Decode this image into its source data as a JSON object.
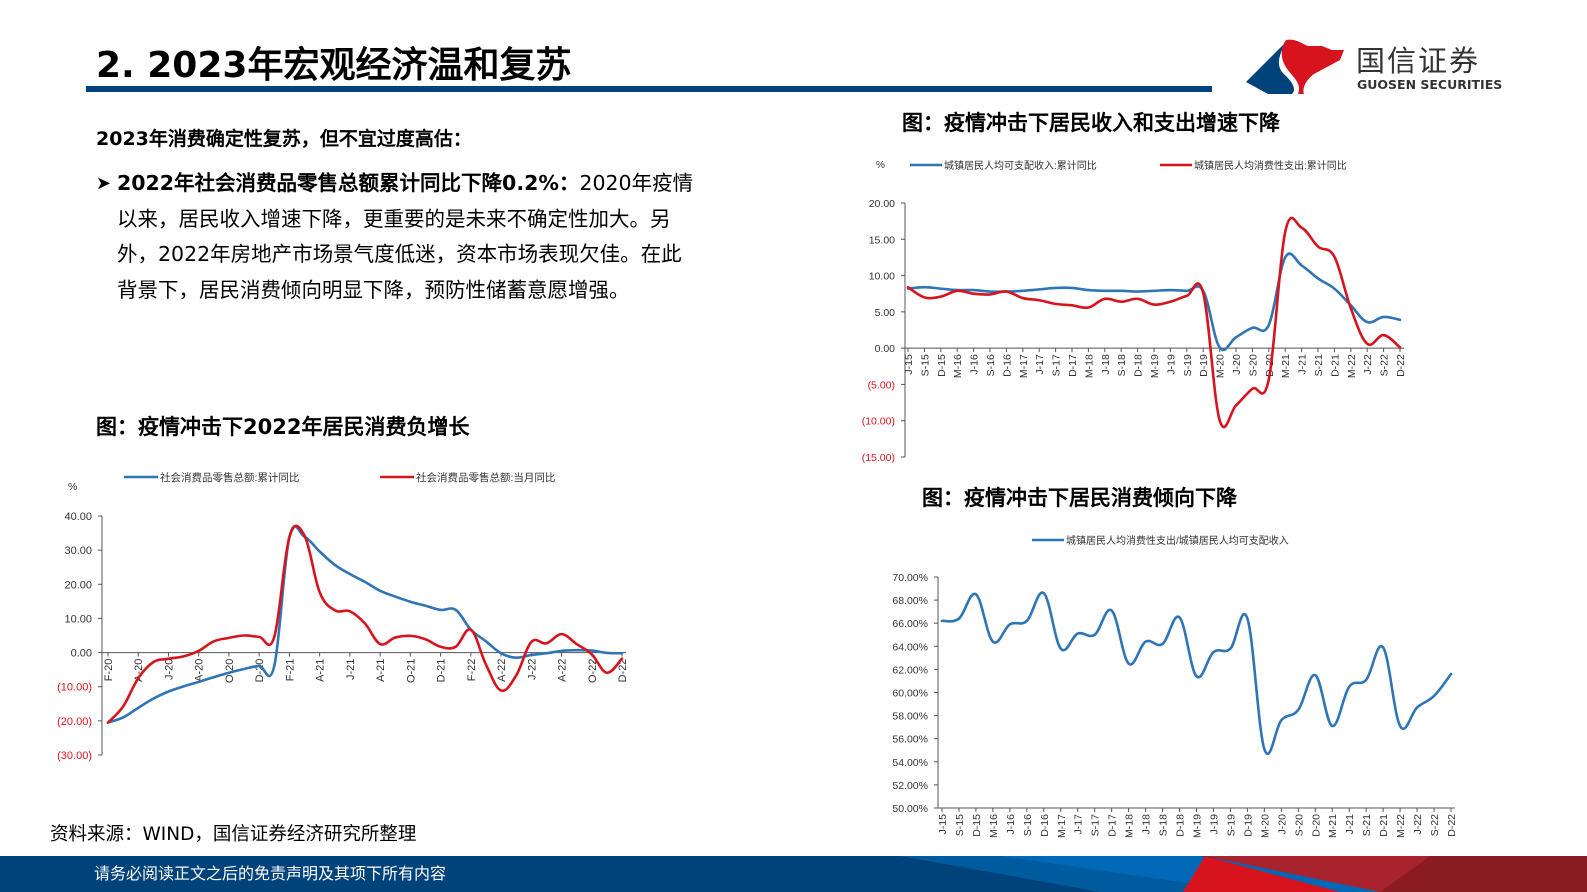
{
  "header": {
    "title": "2.  2023年宏观经济温和复苏",
    "logo_cn": "国信证券",
    "logo_en": "GUOSEN SECURITIES",
    "colors": {
      "brand_blue": "#00427A",
      "brand_red": "#D7141E"
    }
  },
  "body": {
    "subhead": "2023年消费确定性复苏，但不宜过度高估：",
    "bullet": {
      "bold": "2022年社会消费品零售总额累计同比下降0.2%：",
      "text": "2020年疫情以来，居民收入增速下降，更重要的是未来不确定性加大。另外，2022年房地产市场景气度低迷，资本市场表现欠佳。在此背景下，居民消费倾向明显下降，预防性储蓄意愿增强。"
    },
    "source": "资料来源：WIND，国信证券经济研究所整理"
  },
  "footer": {
    "disclaimer": "请务必阅读正文之后的免责声明及其项下所有内容"
  },
  "figures": {
    "retail": {
      "title": "图：疫情冲击下2022年居民消费负增长"
    },
    "income": {
      "title": "图：疫情冲击下居民收入和支出增速下降"
    },
    "propensity": {
      "title": "图：疫情冲击下居民消费倾向下降"
    }
  },
  "chart_data": [
    {
      "id": "retail",
      "type": "line",
      "title": "图：疫情冲击下2022年居民消费负增长",
      "ylabel": "%",
      "ylim": [
        -30,
        40
      ],
      "yticks": [
        "40.00",
        "30.00",
        "20.00",
        "10.00",
        "0.00",
        "(10.00)",
        "(20.00)",
        "(30.00)"
      ],
      "xtick_labels": [
        "F-20",
        "A-20",
        "J-20",
        "A-20",
        "O-20",
        "D-20",
        "F-21",
        "A-21",
        "J-21",
        "A-21",
        "O-21",
        "D-21",
        "F-22",
        "A-22",
        "J-22",
        "A-22",
        "O-22",
        "D-22"
      ],
      "x": [
        "2020-02",
        "2020-03",
        "2020-04",
        "2020-05",
        "2020-06",
        "2020-07",
        "2020-08",
        "2020-09",
        "2020-10",
        "2020-11",
        "2020-12",
        "2021-01",
        "2021-02",
        "2021-03",
        "2021-04",
        "2021-05",
        "2021-06",
        "2021-07",
        "2021-08",
        "2021-09",
        "2021-10",
        "2021-11",
        "2021-12",
        "2022-01",
        "2022-02",
        "2022-03",
        "2022-04",
        "2022-05",
        "2022-06",
        "2022-07",
        "2022-08",
        "2022-09",
        "2022-10",
        "2022-11",
        "2022-12"
      ],
      "series": [
        {
          "name": "社会消费品零售总额:累计同比",
          "color": "#2E75B6",
          "values": [
            -20.5,
            -19.0,
            -16.2,
            -13.5,
            -11.4,
            -9.9,
            -8.6,
            -7.2,
            -5.9,
            -4.8,
            -3.9,
            -3.9,
            33.8,
            33.9,
            29.6,
            25.7,
            23.0,
            20.7,
            18.1,
            16.4,
            14.9,
            13.7,
            12.5,
            12.5,
            6.7,
            3.3,
            -0.2,
            -1.5,
            -0.7,
            -0.2,
            0.5,
            0.7,
            0.6,
            -0.1,
            -0.2
          ]
        },
        {
          "name": "社会消费品零售总额:当月同比",
          "color": "#D7141E",
          "values": [
            -20.5,
            -15.8,
            -7.5,
            -2.8,
            -1.8,
            -1.1,
            0.5,
            3.3,
            4.3,
            5.0,
            4.6,
            4.6,
            33.8,
            34.2,
            17.7,
            12.4,
            12.1,
            8.5,
            2.5,
            4.4,
            4.9,
            3.9,
            1.7,
            1.7,
            6.7,
            -3.5,
            -11.1,
            -6.7,
            3.1,
            2.7,
            5.4,
            2.5,
            -0.5,
            -5.9,
            -1.8
          ]
        }
      ]
    },
    {
      "id": "income",
      "type": "line",
      "title": "图：疫情冲击下居民收入和支出增速下降",
      "ylabel": "%",
      "ylim": [
        -15,
        20
      ],
      "yticks": [
        "20.00",
        "15.00",
        "10.00",
        "5.00",
        "0.00",
        "(5.00)",
        "(10.00)",
        "(15.00)"
      ],
      "xtick_labels": [
        "J-15",
        "S-15",
        "D-15",
        "M-16",
        "J-16",
        "S-16",
        "D-16",
        "M-17",
        "J-17",
        "S-17",
        "D-17",
        "M-18",
        "J-18",
        "S-18",
        "D-18",
        "M-19",
        "J-19",
        "S-19",
        "D-19",
        "M-20",
        "J-20",
        "S-20",
        "D-20",
        "M-21",
        "J-21",
        "S-21",
        "D-21",
        "M-22",
        "J-22",
        "S-22",
        "D-22"
      ],
      "series": [
        {
          "name": "城镇居民人均可支配收入:累计同比",
          "color": "#2E75B6",
          "values": [
            8.2,
            8.4,
            8.2,
            8.0,
            8.0,
            7.8,
            7.8,
            7.9,
            8.1,
            8.3,
            8.3,
            8.0,
            7.9,
            7.9,
            7.8,
            7.9,
            8.0,
            7.9,
            7.9,
            0.1,
            1.5,
            2.8,
            3.2,
            12.5,
            11.4,
            9.6,
            8.2,
            5.9,
            3.6,
            4.3,
            3.9
          ]
        },
        {
          "name": "城镇居民人均消费性支出:累计同比",
          "color": "#D7141E",
          "values": [
            8.4,
            7.0,
            7.1,
            7.9,
            7.5,
            7.4,
            7.8,
            6.9,
            6.6,
            6.1,
            5.9,
            5.6,
            6.8,
            6.4,
            6.8,
            6.0,
            6.4,
            7.2,
            7.6,
            -9.9,
            -7.9,
            -5.6,
            -4.3,
            16.0,
            16.6,
            14.0,
            12.6,
            5.5,
            0.6,
            1.8,
            0.1
          ]
        }
      ]
    },
    {
      "id": "propensity",
      "type": "line",
      "title": "图：疫情冲击下居民消费倾向下降",
      "ylim": [
        50,
        70
      ],
      "yticks": [
        "70.00%",
        "68.00%",
        "66.00%",
        "64.00%",
        "62.00%",
        "60.00%",
        "58.00%",
        "56.00%",
        "54.00%",
        "52.00%",
        "50.00%"
      ],
      "xtick_labels": [
        "J-15",
        "S-15",
        "D-15",
        "M-16",
        "J-16",
        "S-16",
        "D-16",
        "M-17",
        "J-17",
        "S-17",
        "D-17",
        "M-18",
        "J-18",
        "S-18",
        "D-18",
        "M-19",
        "J-19",
        "S-19",
        "D-19",
        "M-20",
        "J-20",
        "S-20",
        "D-20",
        "M-21",
        "J-21",
        "S-21",
        "D-21",
        "M-22",
        "J-22",
        "S-22",
        "D-22"
      ],
      "series": [
        {
          "name": "城镇居民人均消费性支出/城镇居民人均可支配收入",
          "color": "#2E75B6",
          "values": [
            66.2,
            66.4,
            68.5,
            64.4,
            65.9,
            66.2,
            68.6,
            63.8,
            65.1,
            65.0,
            67.1,
            62.5,
            64.4,
            64.2,
            66.5,
            61.4,
            63.5,
            63.8,
            66.4,
            55.1,
            57.6,
            58.5,
            61.5,
            57.1,
            60.5,
            61.1,
            63.9,
            57.1,
            58.7,
            59.7,
            61.6
          ]
        }
      ]
    }
  ]
}
